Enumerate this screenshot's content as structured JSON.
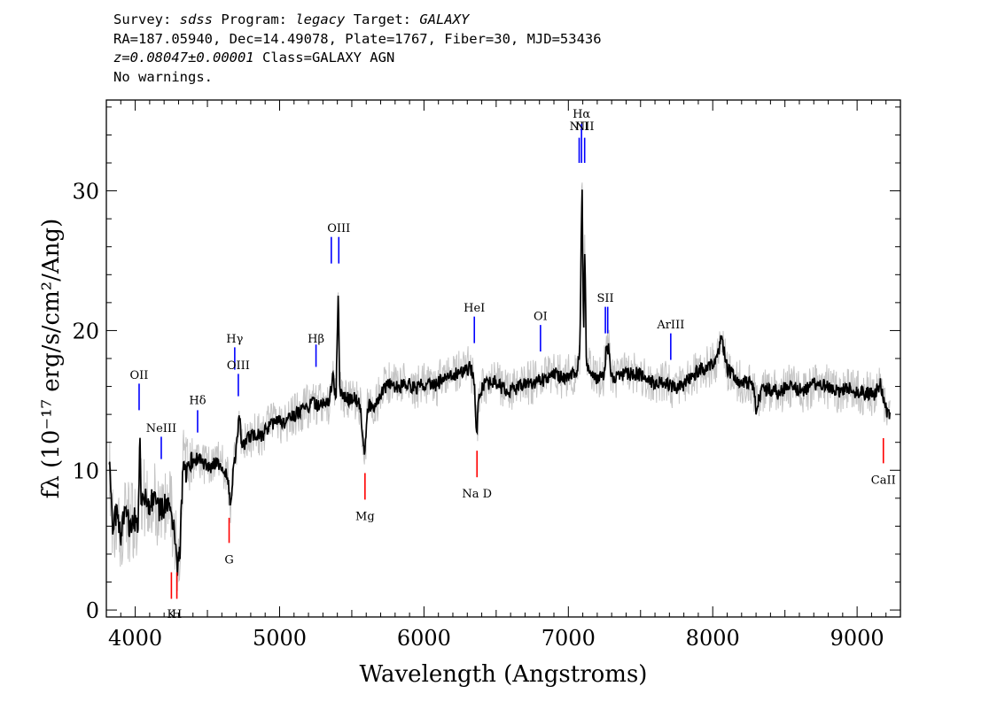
{
  "header": {
    "survey_label": "Survey:",
    "survey": "sdss",
    "program_label": "Program:",
    "program": "legacy",
    "target_label": "Target:",
    "target": "GALAXY",
    "coords": "RA=187.05940, Dec=14.49078, Plate=1767, Fiber=30, MJD=53436",
    "redshift": "z=0.08047±0.00001",
    "class": "Class=GALAXY AGN",
    "warnings": "No warnings."
  },
  "chart_data": {
    "type": "line",
    "xlabel": "Wavelength (Angstroms)",
    "ylabel": "fλ (10⁻¹⁷ erg/s/cm²/Ang)",
    "xlim": [
      3800,
      9300
    ],
    "ylim": [
      -0.5,
      36.5
    ],
    "x_ticks": [
      4000,
      5000,
      6000,
      7000,
      8000,
      9000
    ],
    "y_ticks": [
      0,
      10,
      20,
      30
    ],
    "grid": false,
    "series": [
      {
        "color": "#000000",
        "kind": "spectrum",
        "points": [
          [
            3820,
            10.9
          ],
          [
            3840,
            6.2
          ],
          [
            3870,
            6.8
          ],
          [
            3900,
            5.4
          ],
          [
            3930,
            7.6
          ],
          [
            3960,
            5.9
          ],
          [
            3990,
            6.6
          ],
          [
            4020,
            6.1
          ],
          [
            4034,
            13.4
          ],
          [
            4040,
            8.3
          ],
          [
            4070,
            7.9
          ],
          [
            4100,
            7.5
          ],
          [
            4130,
            8.1
          ],
          [
            4160,
            7.2
          ],
          [
            4190,
            7.3
          ],
          [
            4220,
            7.8
          ],
          [
            4250,
            6.8
          ],
          [
            4270,
            6.3
          ],
          [
            4290,
            3.0
          ],
          [
            4310,
            4.2
          ],
          [
            4330,
            10.3
          ],
          [
            4360,
            9.5
          ],
          [
            4400,
            10.7
          ],
          [
            4440,
            10.8
          ],
          [
            4480,
            10.5
          ],
          [
            4520,
            10.2
          ],
          [
            4560,
            10.6
          ],
          [
            4600,
            10.4
          ],
          [
            4640,
            9.4
          ],
          [
            4660,
            7.5
          ],
          [
            4680,
            10.2
          ],
          [
            4700,
            11.4
          ],
          [
            4720,
            14.2
          ],
          [
            4740,
            11.5
          ],
          [
            4780,
            12.3
          ],
          [
            4830,
            12.6
          ],
          [
            4880,
            12.5
          ],
          [
            4930,
            13.2
          ],
          [
            4980,
            13.5
          ],
          [
            5030,
            13.4
          ],
          [
            5080,
            13.9
          ],
          [
            5130,
            14.1
          ],
          [
            5180,
            14.5
          ],
          [
            5230,
            14.8
          ],
          [
            5260,
            14.6
          ],
          [
            5300,
            15.0
          ],
          [
            5340,
            14.7
          ],
          [
            5370,
            16.7
          ],
          [
            5390,
            14.9
          ],
          [
            5407,
            23.4
          ],
          [
            5415,
            15.8
          ],
          [
            5440,
            15.2
          ],
          [
            5480,
            15.1
          ],
          [
            5520,
            15.2
          ],
          [
            5560,
            14.5
          ],
          [
            5590,
            10.9
          ],
          [
            5610,
            14.6
          ],
          [
            5660,
            14.6
          ],
          [
            5700,
            15.6
          ],
          [
            5760,
            16.2
          ],
          [
            5820,
            15.9
          ],
          [
            5880,
            16.2
          ],
          [
            5940,
            15.9
          ],
          [
            6000,
            16.2
          ],
          [
            6060,
            16.0
          ],
          [
            6120,
            16.4
          ],
          [
            6180,
            16.7
          ],
          [
            6240,
            17.1
          ],
          [
            6280,
            17.1
          ],
          [
            6320,
            17.4
          ],
          [
            6350,
            16.3
          ],
          [
            6365,
            12.2
          ],
          [
            6380,
            15.5
          ],
          [
            6420,
            16.1
          ],
          [
            6480,
            16.4
          ],
          [
            6540,
            15.9
          ],
          [
            6600,
            15.7
          ],
          [
            6660,
            16.0
          ],
          [
            6720,
            16.2
          ],
          [
            6780,
            16.4
          ],
          [
            6840,
            16.5
          ],
          [
            6900,
            16.9
          ],
          [
            6960,
            16.7
          ],
          [
            7020,
            16.9
          ],
          [
            7060,
            17.2
          ],
          [
            7080,
            18.5
          ],
          [
            7095,
            31.3
          ],
          [
            7105,
            19.5
          ],
          [
            7114,
            26.3
          ],
          [
            7125,
            17.8
          ],
          [
            7160,
            16.9
          ],
          [
            7200,
            16.6
          ],
          [
            7240,
            16.6
          ],
          [
            7265,
            18.7
          ],
          [
            7280,
            18.8
          ],
          [
            7300,
            16.6
          ],
          [
            7360,
            16.8
          ],
          [
            7420,
            16.9
          ],
          [
            7480,
            16.9
          ],
          [
            7540,
            16.5
          ],
          [
            7600,
            16.3
          ],
          [
            7660,
            16.4
          ],
          [
            7720,
            15.9
          ],
          [
            7780,
            16.0
          ],
          [
            7840,
            16.5
          ],
          [
            7900,
            17.1
          ],
          [
            7960,
            17.4
          ],
          [
            8020,
            17.6
          ],
          [
            8060,
            19.4
          ],
          [
            8100,
            17.3
          ],
          [
            8160,
            16.5
          ],
          [
            8220,
            16.3
          ],
          [
            8280,
            16.2
          ],
          [
            8300,
            14.4
          ],
          [
            8340,
            15.7
          ],
          [
            8400,
            15.8
          ],
          [
            8460,
            15.5
          ],
          [
            8520,
            16.1
          ],
          [
            8580,
            15.8
          ],
          [
            8640,
            15.7
          ],
          [
            8700,
            16.2
          ],
          [
            8760,
            16.1
          ],
          [
            8820,
            15.9
          ],
          [
            8880,
            15.6
          ],
          [
            8940,
            15.9
          ],
          [
            9000,
            15.6
          ],
          [
            9060,
            15.5
          ],
          [
            9120,
            15.4
          ],
          [
            9160,
            16.2
          ],
          [
            9200,
            14.4
          ],
          [
            9230,
            13.8
          ]
        ]
      }
    ],
    "lines": [
      {
        "label": "OII",
        "rest": 3727,
        "color": "#0000ff",
        "y1": 14.3,
        "y2": 16.2,
        "label_y": 16.8
      },
      {
        "label": "NeIII",
        "rest": 3869,
        "color": "#0000ff",
        "y1": 10.8,
        "y2": 12.4,
        "label_y": 13.0
      },
      {
        "label": "Hδ",
        "rest": 4102,
        "color": "#0000ff",
        "y1": 12.7,
        "y2": 14.3,
        "label_y": 15.0
      },
      {
        "label": "Hγ",
        "rest": 4340,
        "color": "#0000ff",
        "y1": 17.2,
        "y2": 18.8,
        "label_y": 19.4
      },
      {
        "label": "OIII",
        "rest": 4363,
        "color": "#0000ff",
        "y1": 15.3,
        "y2": 16.9,
        "label_y": 17.5
      },
      {
        "label": "Hβ",
        "rest": 4861,
        "color": "#0000ff",
        "y1": 17.4,
        "y2": 19.0,
        "label_y": 19.4
      },
      {
        "label": "",
        "rest": 4959,
        "color": "#0000ff",
        "y1": 24.8,
        "y2": 26.7,
        "label_y": 26.7
      },
      {
        "label": "OIII",
        "rest": 5007,
        "color": "#0000ff",
        "y1": 24.8,
        "y2": 26.7,
        "label_y": 27.3
      },
      {
        "label": "HeI",
        "rest": 5876,
        "color": "#0000ff",
        "y1": 19.1,
        "y2": 21.0,
        "label_y": 21.6
      },
      {
        "label": "OI",
        "rest": 6300,
        "color": "#0000ff",
        "y1": 18.5,
        "y2": 20.4,
        "label_y": 21.0
      },
      {
        "label": "NII",
        "rest": 6548,
        "color": "#0000ff",
        "y1": 32.0,
        "y2": 33.8,
        "label_y": 34.6
      },
      {
        "label": "Hα",
        "rest": 6563,
        "color": "#0000ff",
        "y1": 32.0,
        "y2": 34.8,
        "label_y": 35.5
      },
      {
        "label": "NII",
        "rest": 6583,
        "color": "#0000ff",
        "y1": 32.0,
        "y2": 33.8,
        "label_y": 34.6
      },
      {
        "label": "SII",
        "rest": 6716,
        "color": "#0000ff",
        "y1": 19.8,
        "y2": 21.7,
        "label_y": 22.3
      },
      {
        "label": "",
        "rest": 6731,
        "color": "#0000ff",
        "y1": 19.8,
        "y2": 21.7,
        "label_y": 21.7
      },
      {
        "label": "ArIII",
        "rest": 7135,
        "color": "#0000ff",
        "y1": 17.9,
        "y2": 19.8,
        "label_y": 20.4
      },
      {
        "label": "K",
        "rest": 3934,
        "color": "#ff0000",
        "y1": 2.7,
        "y2": 0.8,
        "label_y": -0.3
      },
      {
        "label": "H",
        "rest": 3969,
        "color": "#ff0000",
        "y1": 2.7,
        "y2": 0.8,
        "label_y": -0.3
      },
      {
        "label": "G",
        "rest": 4304,
        "color": "#ff0000",
        "y1": 6.6,
        "y2": 4.8,
        "label_y": 3.6
      },
      {
        "label": "Mg",
        "rest": 5175,
        "color": "#ff0000",
        "y1": 9.8,
        "y2": 7.9,
        "label_y": 6.7
      },
      {
        "label": "Na D",
        "rest": 5893,
        "color": "#ff0000",
        "y1": 11.4,
        "y2": 9.5,
        "label_y": 8.3
      },
      {
        "label": "CaII",
        "rest": 8498,
        "color": "#ff0000",
        "y1": 12.3,
        "y2": 10.5,
        "label_y": 9.3
      }
    ]
  }
}
